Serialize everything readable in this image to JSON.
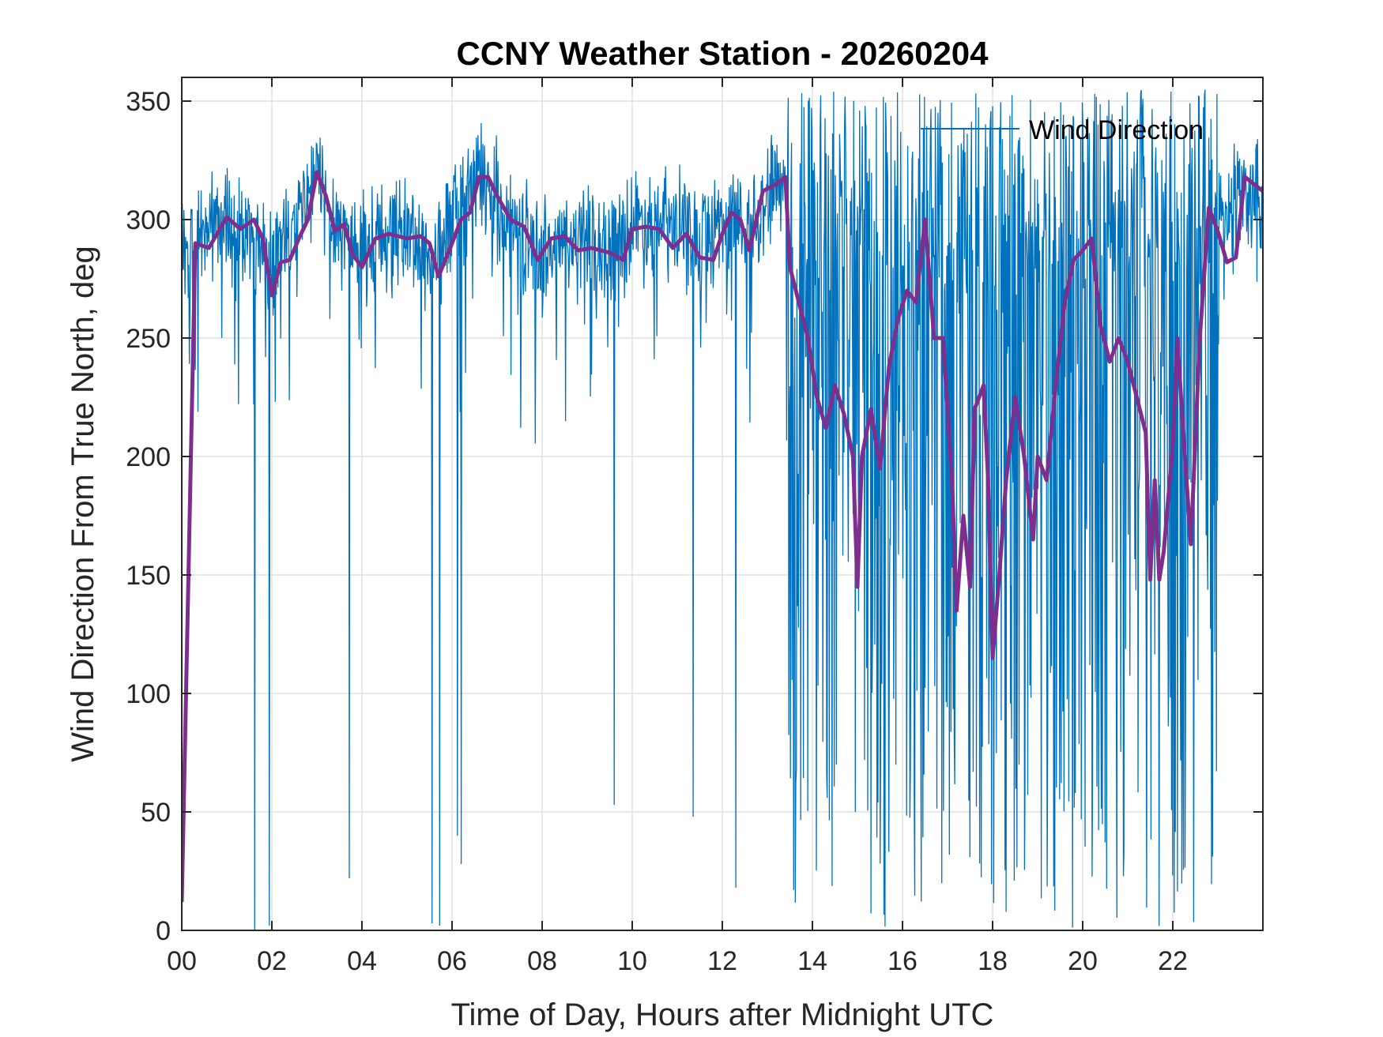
{
  "chart_data": {
    "type": "line",
    "title": "CCNY Weather Station - 20260204",
    "xlabel": "Time of Day, Hours after Midnight UTC",
    "ylabel": "Wind Direction From True North, deg",
    "xlim": [
      0,
      24
    ],
    "ylim": [
      0,
      360
    ],
    "x_ticks": [
      0,
      2,
      4,
      6,
      8,
      10,
      12,
      14,
      16,
      18,
      20,
      22
    ],
    "x_tick_labels": [
      "00",
      "02",
      "04",
      "06",
      "08",
      "10",
      "12",
      "14",
      "16",
      "18",
      "20",
      "22"
    ],
    "y_ticks": [
      0,
      50,
      100,
      150,
      200,
      250,
      300,
      350
    ],
    "y_tick_labels": [
      "0",
      "50",
      "100",
      "150",
      "200",
      "250",
      "300",
      "350"
    ],
    "grid": true,
    "legend": {
      "position": "top-right",
      "entries": [
        "Wind Direction"
      ]
    },
    "colors": {
      "raw": "#0072BD",
      "smooth": "#7E2F8E"
    },
    "series": [
      {
        "name": "Wind Direction",
        "style": "thin",
        "noise_spread": 25,
        "dropouts": [
          [
            1.62,
            0
          ],
          [
            1.95,
            2
          ],
          [
            3.72,
            22
          ],
          [
            5.55,
            3
          ],
          [
            5.72,
            2
          ],
          [
            6.12,
            40
          ],
          [
            6.2,
            28
          ],
          [
            9.6,
            53
          ],
          [
            11.35,
            48
          ],
          [
            12.3,
            18
          ]
        ],
        "low_swing_range": [
          13.4,
          23.0
        ],
        "values": [
          [
            0.0,
            290
          ],
          [
            0.2,
            288
          ],
          [
            0.4,
            293
          ],
          [
            0.6,
            298
          ],
          [
            1.0,
            301
          ],
          [
            1.5,
            293
          ],
          [
            2.0,
            285
          ],
          [
            2.5,
            296
          ],
          [
            3.0,
            318
          ],
          [
            3.4,
            300
          ],
          [
            3.8,
            290
          ],
          [
            4.2,
            293
          ],
          [
            5.0,
            295
          ],
          [
            5.6,
            282
          ],
          [
            6.0,
            300
          ],
          [
            6.6,
            318
          ],
          [
            7.0,
            308
          ],
          [
            7.5,
            295
          ],
          [
            7.9,
            285
          ],
          [
            8.5,
            290
          ],
          [
            9.0,
            290
          ],
          [
            9.5,
            288
          ],
          [
            10.0,
            298
          ],
          [
            10.5,
            300
          ],
          [
            11.0,
            295
          ],
          [
            11.5,
            290
          ],
          [
            12.0,
            300
          ],
          [
            12.5,
            298
          ],
          [
            13.0,
            312
          ],
          [
            13.4,
            318
          ]
        ]
      },
      {
        "name": "",
        "style": "thick",
        "values": [
          [
            0.0,
            12
          ],
          [
            0.3,
            290
          ],
          [
            0.6,
            288
          ],
          [
            1.0,
            301
          ],
          [
            1.3,
            296
          ],
          [
            1.6,
            300
          ],
          [
            1.8,
            292
          ],
          [
            2.0,
            268
          ],
          [
            2.2,
            282
          ],
          [
            2.4,
            283
          ],
          [
            2.6,
            292
          ],
          [
            2.8,
            300
          ],
          [
            3.0,
            320
          ],
          [
            3.2,
            310
          ],
          [
            3.4,
            295
          ],
          [
            3.6,
            298
          ],
          [
            3.8,
            285
          ],
          [
            4.0,
            280
          ],
          [
            4.3,
            292
          ],
          [
            4.6,
            294
          ],
          [
            5.0,
            292
          ],
          [
            5.3,
            293
          ],
          [
            5.5,
            290
          ],
          [
            5.7,
            276
          ],
          [
            6.0,
            290
          ],
          [
            6.2,
            300
          ],
          [
            6.4,
            303
          ],
          [
            6.6,
            318
          ],
          [
            6.8,
            318
          ],
          [
            7.0,
            310
          ],
          [
            7.3,
            300
          ],
          [
            7.6,
            297
          ],
          [
            7.9,
            283
          ],
          [
            8.2,
            292
          ],
          [
            8.5,
            293
          ],
          [
            8.8,
            287
          ],
          [
            9.1,
            288
          ],
          [
            9.5,
            286
          ],
          [
            9.8,
            283
          ],
          [
            10.0,
            296
          ],
          [
            10.3,
            297
          ],
          [
            10.6,
            296
          ],
          [
            10.9,
            288
          ],
          [
            11.2,
            294
          ],
          [
            11.5,
            284
          ],
          [
            11.8,
            283
          ],
          [
            12.0,
            294
          ],
          [
            12.2,
            303
          ],
          [
            12.4,
            300
          ],
          [
            12.6,
            287
          ],
          [
            12.9,
            312
          ],
          [
            13.2,
            315
          ],
          [
            13.4,
            318
          ],
          [
            13.5,
            280
          ],
          [
            13.7,
            265
          ],
          [
            13.9,
            250
          ],
          [
            14.1,
            225
          ],
          [
            14.3,
            212
          ],
          [
            14.5,
            230
          ],
          [
            14.7,
            218
          ],
          [
            14.9,
            200
          ],
          [
            15.0,
            145
          ],
          [
            15.1,
            200
          ],
          [
            15.3,
            220
          ],
          [
            15.5,
            195
          ],
          [
            15.7,
            238
          ],
          [
            15.9,
            258
          ],
          [
            16.1,
            270
          ],
          [
            16.3,
            265
          ],
          [
            16.5,
            300
          ],
          [
            16.7,
            250
          ],
          [
            16.9,
            250
          ],
          [
            17.1,
            190
          ],
          [
            17.2,
            135
          ],
          [
            17.35,
            175
          ],
          [
            17.5,
            145
          ],
          [
            17.6,
            220
          ],
          [
            17.8,
            230
          ],
          [
            17.9,
            190
          ],
          [
            18.0,
            115
          ],
          [
            18.15,
            150
          ],
          [
            18.3,
            190
          ],
          [
            18.5,
            225
          ],
          [
            18.7,
            200
          ],
          [
            18.9,
            165
          ],
          [
            19.0,
            200
          ],
          [
            19.2,
            190
          ],
          [
            19.4,
            230
          ],
          [
            19.6,
            265
          ],
          [
            19.8,
            283
          ],
          [
            20.0,
            287
          ],
          [
            20.2,
            292
          ],
          [
            20.4,
            255
          ],
          [
            20.6,
            240
          ],
          [
            20.8,
            250
          ],
          [
            21.0,
            240
          ],
          [
            21.2,
            225
          ],
          [
            21.4,
            210
          ],
          [
            21.5,
            148
          ],
          [
            21.6,
            190
          ],
          [
            21.7,
            148
          ],
          [
            21.8,
            160
          ],
          [
            22.0,
            205
          ],
          [
            22.1,
            250
          ],
          [
            22.2,
            220
          ],
          [
            22.4,
            163
          ],
          [
            22.6,
            250
          ],
          [
            22.8,
            305
          ],
          [
            23.0,
            295
          ],
          [
            23.2,
            282
          ],
          [
            23.4,
            284
          ],
          [
            23.6,
            318
          ],
          [
            24.0,
            312
          ]
        ]
      }
    ]
  }
}
